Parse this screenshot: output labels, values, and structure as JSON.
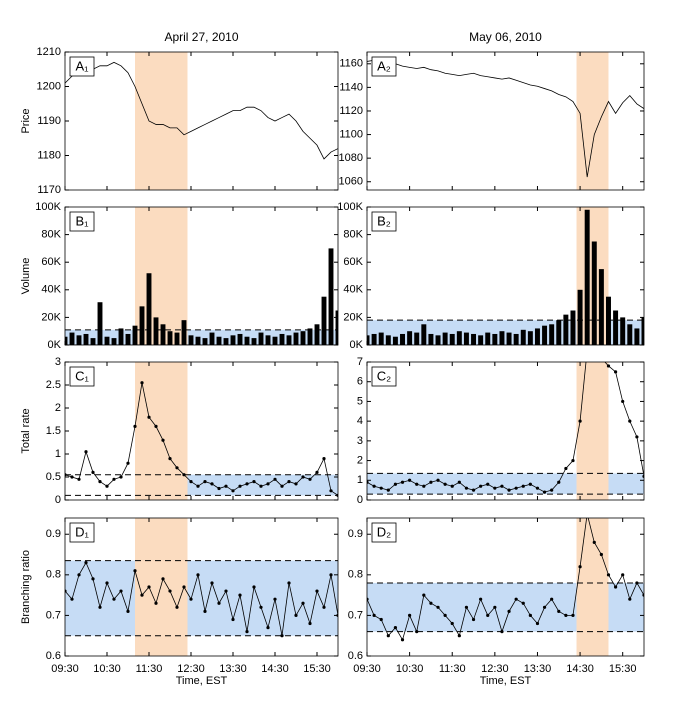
{
  "chart_data": [
    {
      "type": "line",
      "title": "April 27, 2010",
      "label": "A₁",
      "ylabel": "Price",
      "color": "#000000",
      "x": [
        "09:30",
        "09:40",
        "09:50",
        "10:00",
        "10:10",
        "10:20",
        "10:30",
        "10:40",
        "10:50",
        "11:00",
        "11:10",
        "11:20",
        "11:30",
        "11:40",
        "11:50",
        "12:00",
        "12:10",
        "12:20",
        "12:30",
        "12:40",
        "12:50",
        "13:00",
        "13:10",
        "13:20",
        "13:30",
        "13:40",
        "13:50",
        "14:00",
        "14:10",
        "14:20",
        "14:30",
        "14:40",
        "14:50",
        "15:00",
        "15:10",
        "15:20",
        "15:30",
        "15:40",
        "15:50",
        "16:00"
      ],
      "values": [
        1201,
        1203,
        1204,
        1205,
        1205,
        1206,
        1206,
        1207,
        1206,
        1204,
        1200,
        1195,
        1190,
        1189,
        1189,
        1188,
        1188,
        1186,
        1187,
        1188,
        1189,
        1190,
        1191,
        1192,
        1193,
        1193,
        1194,
        1194,
        1193,
        1191,
        1190,
        1191,
        1192,
        1190,
        1187,
        1185,
        1183,
        1179,
        1181,
        1182
      ],
      "xlim": [
        "09:30",
        "16:00"
      ],
      "ylim": [
        1170,
        1210
      ],
      "yticks": [
        1170,
        1180,
        1190,
        1200,
        1210
      ],
      "highlight": [
        "11:10",
        "12:25"
      ],
      "highlight_color": "#fbdcc0"
    },
    {
      "type": "line",
      "title": "May 06, 2010",
      "label": "A₂",
      "color": "#000000",
      "x": [
        "09:30",
        "09:40",
        "09:50",
        "10:00",
        "10:10",
        "10:20",
        "10:30",
        "10:40",
        "10:50",
        "11:00",
        "11:10",
        "11:20",
        "11:30",
        "11:40",
        "11:50",
        "12:00",
        "12:10",
        "12:20",
        "12:30",
        "12:40",
        "12:50",
        "13:00",
        "13:10",
        "13:20",
        "13:30",
        "13:40",
        "13:50",
        "14:00",
        "14:10",
        "14:20",
        "14:30",
        "14:40",
        "14:50",
        "15:00",
        "15:10",
        "15:20",
        "15:30",
        "15:40",
        "15:50",
        "16:00"
      ],
      "values": [
        1162,
        1163,
        1161,
        1162,
        1160,
        1158,
        1157,
        1156,
        1157,
        1155,
        1154,
        1152,
        1151,
        1150,
        1151,
        1152,
        1150,
        1149,
        1148,
        1147,
        1148,
        1146,
        1144,
        1142,
        1141,
        1139,
        1137,
        1134,
        1132,
        1128,
        1118,
        1064,
        1100,
        1115,
        1128,
        1118,
        1127,
        1133,
        1126,
        1122
      ],
      "xlim": [
        "09:30",
        "16:00"
      ],
      "ylim": [
        1053,
        1170
      ],
      "yticks": [
        1060,
        1080,
        1100,
        1120,
        1140,
        1160
      ],
      "highlight": [
        "14:25",
        "15:10"
      ],
      "highlight_color": "#fbdcc0"
    },
    {
      "type": "bar",
      "label": "B₁",
      "ylabel": "Volume",
      "color": "#000000",
      "x": [
        "09:30",
        "09:40",
        "09:50",
        "10:00",
        "10:10",
        "10:20",
        "10:30",
        "10:40",
        "10:50",
        "11:00",
        "11:10",
        "11:20",
        "11:30",
        "11:40",
        "11:50",
        "12:00",
        "12:10",
        "12:20",
        "12:30",
        "12:40",
        "12:50",
        "13:00",
        "13:10",
        "13:20",
        "13:30",
        "13:40",
        "13:50",
        "14:00",
        "14:10",
        "14:20",
        "14:30",
        "14:40",
        "14:50",
        "15:00",
        "15:10",
        "15:20",
        "15:30",
        "15:40",
        "15:50",
        "16:00"
      ],
      "values": [
        6000,
        9000,
        7000,
        8000,
        5000,
        31000,
        6000,
        5000,
        12000,
        8000,
        14000,
        28000,
        52000,
        20000,
        15000,
        10000,
        9000,
        18000,
        7000,
        6000,
        5000,
        9000,
        6000,
        5000,
        7000,
        8000,
        6000,
        5000,
        9000,
        7000,
        6000,
        8000,
        7000,
        9000,
        10000,
        12000,
        15000,
        35000,
        70000,
        25000
      ],
      "xlim": [
        "09:30",
        "16:00"
      ],
      "ylim": [
        0,
        100000
      ],
      "yticks": [
        {
          "value": 0,
          "label": "0K"
        },
        {
          "value": 20000,
          "label": "20K"
        },
        {
          "value": 40000,
          "label": "40K"
        },
        {
          "value": 60000,
          "label": "60K"
        },
        {
          "value": 80000,
          "label": "80K"
        },
        {
          "value": 100000,
          "label": "100K"
        }
      ],
      "highlight": [
        "11:10",
        "12:25"
      ],
      "highlight_color": "#fbdcc0",
      "band": [
        0,
        11000
      ],
      "band_color": "#c6dcf5"
    },
    {
      "type": "bar",
      "label": "B₂",
      "color": "#000000",
      "x": [
        "09:30",
        "09:40",
        "09:50",
        "10:00",
        "10:10",
        "10:20",
        "10:30",
        "10:40",
        "10:50",
        "11:00",
        "11:10",
        "11:20",
        "11:30",
        "11:40",
        "11:50",
        "12:00",
        "12:10",
        "12:20",
        "12:30",
        "12:40",
        "12:50",
        "13:00",
        "13:10",
        "13:20",
        "13:30",
        "13:40",
        "13:50",
        "14:00",
        "14:10",
        "14:20",
        "14:30",
        "14:40",
        "14:50",
        "15:00",
        "15:10",
        "15:20",
        "15:30",
        "15:40",
        "15:50",
        "16:00"
      ],
      "values": [
        7000,
        8000,
        9000,
        7000,
        6000,
        8000,
        10000,
        9000,
        15000,
        8000,
        7000,
        9000,
        8000,
        10000,
        9000,
        8000,
        7000,
        9000,
        8000,
        10000,
        9000,
        8000,
        11000,
        10000,
        12000,
        14000,
        15000,
        18000,
        22000,
        25000,
        40000,
        98000,
        75000,
        55000,
        35000,
        25000,
        20000,
        15000,
        12000,
        20000
      ],
      "xlim": [
        "09:30",
        "16:00"
      ],
      "ylim": [
        0,
        100000
      ],
      "yticks": [
        {
          "value": 0,
          "label": "0K"
        },
        {
          "value": 20000,
          "label": "20K"
        },
        {
          "value": 40000,
          "label": "40K"
        },
        {
          "value": 60000,
          "label": "60K"
        },
        {
          "value": 80000,
          "label": "80K"
        },
        {
          "value": 100000,
          "label": "100K"
        }
      ],
      "highlight": [
        "14:25",
        "15:10"
      ],
      "highlight_color": "#fbdcc0",
      "band": [
        0,
        18000
      ],
      "band_color": "#c6dcf5"
    },
    {
      "type": "line",
      "markers": true,
      "label": "C₁",
      "ylabel": "Total rate",
      "color": "#000000",
      "x": [
        "09:30",
        "09:40",
        "09:50",
        "10:00",
        "10:10",
        "10:20",
        "10:30",
        "10:40",
        "10:50",
        "11:00",
        "11:10",
        "11:20",
        "11:30",
        "11:40",
        "11:50",
        "12:00",
        "12:10",
        "12:20",
        "12:30",
        "12:40",
        "12:50",
        "13:00",
        "13:10",
        "13:20",
        "13:30",
        "13:40",
        "13:50",
        "14:00",
        "14:10",
        "14:20",
        "14:30",
        "14:40",
        "14:50",
        "15:00",
        "15:10",
        "15:20",
        "15:30",
        "15:40",
        "15:50",
        "16:00"
      ],
      "values": [
        0.55,
        0.5,
        0.45,
        1.05,
        0.6,
        0.4,
        0.3,
        0.45,
        0.5,
        0.8,
        1.6,
        2.55,
        1.8,
        1.6,
        1.3,
        0.9,
        0.7,
        0.55,
        0.4,
        0.3,
        0.4,
        0.35,
        0.25,
        0.3,
        0.2,
        0.3,
        0.35,
        0.4,
        0.3,
        0.35,
        0.45,
        0.3,
        0.4,
        0.35,
        0.5,
        0.45,
        0.6,
        0.9,
        0.2,
        0.1
      ],
      "xlim": [
        "09:30",
        "16:00"
      ],
      "ylim": [
        0,
        3
      ],
      "yticks": [
        0,
        0.5,
        1,
        1.5,
        2,
        2.5,
        3
      ],
      "highlight": [
        "11:10",
        "12:25"
      ],
      "highlight_color": "#fbdcc0",
      "band": [
        0.1,
        0.55
      ],
      "band_x": [
        "12:25",
        "16:00"
      ],
      "band_color": "#c6dcf5"
    },
    {
      "type": "line",
      "markers": true,
      "label": "C₂",
      "color": "#000000",
      "x": [
        "09:30",
        "09:40",
        "09:50",
        "10:00",
        "10:10",
        "10:20",
        "10:30",
        "10:40",
        "10:50",
        "11:00",
        "11:10",
        "11:20",
        "11:30",
        "11:40",
        "11:50",
        "12:00",
        "12:10",
        "12:20",
        "12:30",
        "12:40",
        "12:50",
        "13:00",
        "13:10",
        "13:20",
        "13:30",
        "13:40",
        "13:50",
        "14:00",
        "14:10",
        "14:20",
        "14:30",
        "14:40",
        "14:50",
        "15:00",
        "15:10",
        "15:20",
        "15:30",
        "15:40",
        "15:50",
        "16:00"
      ],
      "values": [
        0.9,
        0.7,
        0.6,
        0.5,
        0.8,
        0.9,
        1.0,
        0.8,
        0.7,
        0.9,
        1.0,
        0.8,
        0.7,
        0.9,
        0.6,
        0.5,
        0.7,
        0.8,
        0.6,
        0.7,
        0.5,
        0.6,
        0.7,
        0.8,
        0.6,
        0.4,
        0.5,
        0.9,
        1.6,
        2.0,
        4.0,
        7.6,
        7.8,
        7.2,
        6.8,
        6.5,
        5.0,
        4.0,
        3.2,
        1.2
      ],
      "xlim": [
        "09:30",
        "16:00"
      ],
      "ylim": [
        0,
        7
      ],
      "yticks": [
        0,
        1,
        2,
        3,
        4,
        5,
        6,
        7
      ],
      "highlight": [
        "14:25",
        "15:10"
      ],
      "highlight_color": "#fbdcc0",
      "band": [
        0.3,
        1.35
      ],
      "band_color": "#c6dcf5"
    },
    {
      "type": "line",
      "markers": true,
      "label": "D₁",
      "ylabel": "Branching ratio",
      "xlabel": "Time, EST",
      "color": "#000000",
      "x": [
        "09:30",
        "09:40",
        "09:50",
        "10:00",
        "10:10",
        "10:20",
        "10:30",
        "10:40",
        "10:50",
        "11:00",
        "11:10",
        "11:20",
        "11:30",
        "11:40",
        "11:50",
        "12:00",
        "12:10",
        "12:20",
        "12:30",
        "12:40",
        "12:50",
        "13:00",
        "13:10",
        "13:20",
        "13:30",
        "13:40",
        "13:50",
        "14:00",
        "14:10",
        "14:20",
        "14:30",
        "14:40",
        "14:50",
        "15:00",
        "15:10",
        "15:20",
        "15:30",
        "15:40",
        "15:50",
        "16:00"
      ],
      "values": [
        0.76,
        0.74,
        0.8,
        0.83,
        0.79,
        0.72,
        0.78,
        0.74,
        0.76,
        0.71,
        0.81,
        0.75,
        0.77,
        0.73,
        0.79,
        0.76,
        0.72,
        0.77,
        0.74,
        0.8,
        0.71,
        0.78,
        0.73,
        0.76,
        0.69,
        0.75,
        0.66,
        0.77,
        0.72,
        0.67,
        0.74,
        0.65,
        0.78,
        0.7,
        0.73,
        0.68,
        0.76,
        0.72,
        0.8,
        0.7
      ],
      "xlim": [
        "09:30",
        "16:00"
      ],
      "xticks": [
        "09:30",
        "10:30",
        "11:30",
        "12:30",
        "13:30",
        "14:30",
        "15:30"
      ],
      "ylim": [
        0.6,
        0.94
      ],
      "yticks": [
        0.6,
        0.7,
        0.8,
        0.9
      ],
      "highlight": [
        "11:10",
        "12:25"
      ],
      "highlight_color": "#fbdcc0",
      "band": [
        0.65,
        0.835
      ],
      "band_color": "#c6dcf5"
    },
    {
      "type": "line",
      "markers": true,
      "label": "D₂",
      "xlabel": "Time, EST",
      "color": "#000000",
      "x": [
        "09:30",
        "09:40",
        "09:50",
        "10:00",
        "10:10",
        "10:20",
        "10:30",
        "10:40",
        "10:50",
        "11:00",
        "11:10",
        "11:20",
        "11:30",
        "11:40",
        "11:50",
        "12:00",
        "12:10",
        "12:20",
        "12:30",
        "12:40",
        "12:50",
        "13:00",
        "13:10",
        "13:20",
        "13:30",
        "13:40",
        "13:50",
        "14:00",
        "14:10",
        "14:20",
        "14:30",
        "14:40",
        "14:50",
        "15:00",
        "15:10",
        "15:20",
        "15:30",
        "15:40",
        "15:50",
        "16:00"
      ],
      "values": [
        0.74,
        0.7,
        0.69,
        0.65,
        0.67,
        0.64,
        0.7,
        0.66,
        0.75,
        0.73,
        0.72,
        0.7,
        0.68,
        0.65,
        0.72,
        0.69,
        0.74,
        0.7,
        0.72,
        0.66,
        0.71,
        0.74,
        0.73,
        0.7,
        0.68,
        0.72,
        0.74,
        0.71,
        0.7,
        0.7,
        0.82,
        0.95,
        0.88,
        0.85,
        0.8,
        0.77,
        0.8,
        0.74,
        0.78,
        0.75
      ],
      "xlim": [
        "09:30",
        "16:00"
      ],
      "xticks": [
        "09:30",
        "10:30",
        "11:30",
        "12:30",
        "13:30",
        "14:30",
        "15:30"
      ],
      "ylim": [
        0.6,
        0.94
      ],
      "yticks": [
        0.6,
        0.7,
        0.8,
        0.9
      ],
      "highlight": [
        "14:25",
        "15:10"
      ],
      "highlight_color": "#fbdcc0",
      "band": [
        0.66,
        0.78
      ],
      "band_color": "#c6dcf5"
    }
  ]
}
